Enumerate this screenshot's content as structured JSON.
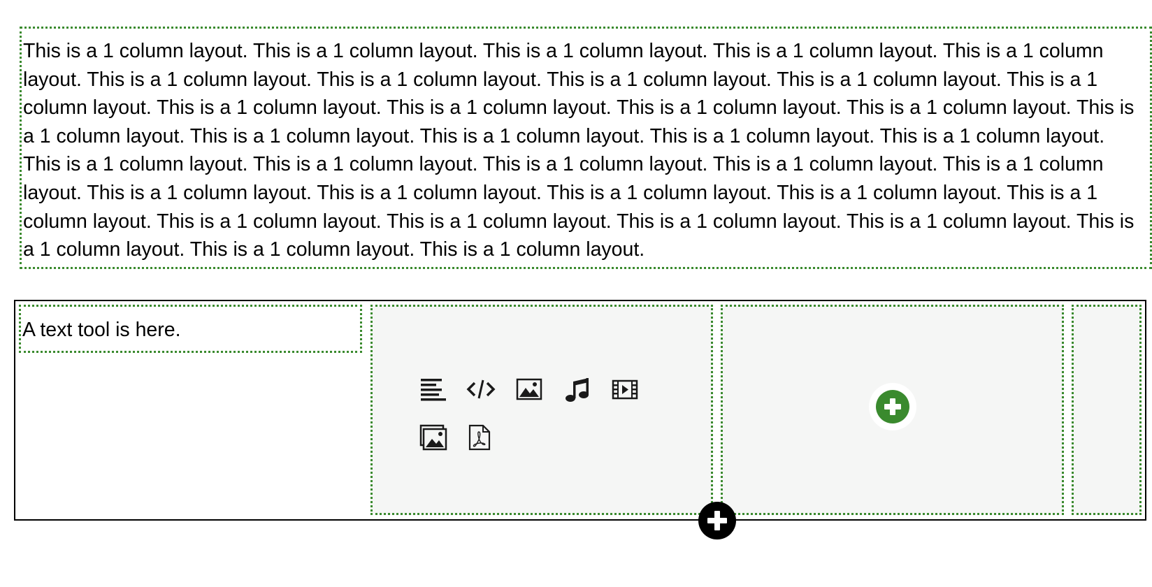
{
  "one_column_block": {
    "text": "This is a 1 column layout. This is a 1 column layout. This is a 1 column layout. This is a 1 column layout. This is a 1 column layout. This is a 1 column layout. This is a 1 column layout. This is a 1 column layout. This is a 1 column layout. This is a 1 column layout. This is a 1 column layout. This is a 1 column layout. This is a 1 column layout. This is a 1 column layout. This is a 1 column layout. This is a 1 column layout. This is a 1 column layout. This is a 1 column layout. This is a 1 column layout. This is a 1 column layout. This is a 1 column layout. This is a 1 column layout. This is a 1 column layout. This is a 1 column layout. This is a 1 column layout. This is a 1 column layout. This is a 1 column layout. This is a 1 column layout. This is a 1 column layout. This is a 1 column layout. This is a 1 column layout. This is a 1 column layout. This is a 1 column layout. This is a 1 column layout. This is a 1 column layout. This is a 1 column layout."
  },
  "multi_column_row": {
    "text_tool": "A text tool is here.",
    "tool_icons": [
      "text-align-icon",
      "code-icon",
      "image-icon",
      "music-icon",
      "video-icon",
      "gallery-icon",
      "pdf-icon"
    ]
  },
  "colors": {
    "outline_green": "#3a8a2e",
    "column_bg": "#f5f6f5",
    "add_button": "#3a8a2e",
    "add_row_button": "#000000"
  }
}
